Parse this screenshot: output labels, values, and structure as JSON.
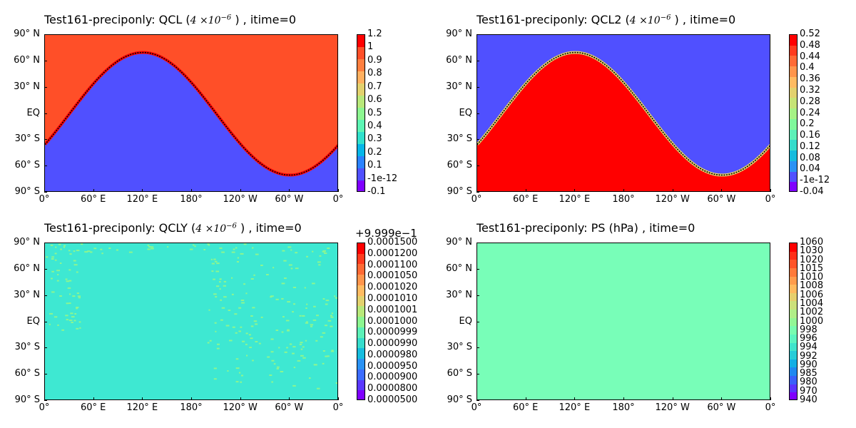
{
  "chart_data": [
    {
      "type": "heatmap",
      "title_prefix": "Test161-preciponly: QCL (",
      "title_scale_base": "4 ×10",
      "title_scale_exp": "−6",
      "title_suffix": " ) , itime=0",
      "ytick_labels": [
        "90° N",
        "60° N",
        "30° N",
        "EQ",
        "30° S",
        "60° S",
        "90° S"
      ],
      "xtick_labels": [
        "0°",
        "60° E",
        "120° E",
        "180°",
        "120° W",
        "60° W",
        "0°"
      ],
      "colorbar_labels": [
        "1.2",
        "1",
        "0.9",
        "0.8",
        "0.7",
        "0.6",
        "0.5",
        "0.4",
        "0.3",
        "0.2",
        "0.1",
        "-1e-12",
        "-0.1"
      ],
      "colorbar_colors": [
        "#ff0000",
        "#ff4f28",
        "#ff7f3f",
        "#ffb060",
        "#e2d16e",
        "#b8e87a",
        "#8cf690",
        "#5cf4b4",
        "#30e0cc",
        "#06b6e8",
        "#2a82ff",
        "#5050ff",
        "#7f00ff"
      ],
      "background_color": "#ff4f28",
      "region_color": "#5050ff",
      "edge_color": "#ff0000",
      "contour_color": "#000000",
      "region": "low-latitude band bounded by a sinusoidal front, peaking near 120° E at about 70° N and dipping near 60° W to about 70° S"
    },
    {
      "type": "heatmap",
      "title_prefix": "Test161-preciponly: QCL2 (",
      "title_scale_base": "4 ×10",
      "title_scale_exp": "−6",
      "title_suffix": " ) , itime=0",
      "ytick_labels": [
        "90° N",
        "60° N",
        "30° N",
        "EQ",
        "30° S",
        "60° S",
        "90° S"
      ],
      "xtick_labels": [
        "0°",
        "60° E",
        "120° E",
        "180°",
        "120° W",
        "60° W",
        "0°"
      ],
      "colorbar_labels": [
        "0.52",
        "0.48",
        "0.44",
        "0.4",
        "0.36",
        "0.32",
        "0.28",
        "0.24",
        "0.2",
        "0.16",
        "0.12",
        "0.08",
        "0.04",
        "-1e-12",
        "-0.04"
      ],
      "colorbar_colors": [
        "#ff0000",
        "#ff3b1e",
        "#ff6a35",
        "#ff954c",
        "#ffbb62",
        "#e2d16e",
        "#c6e476",
        "#a6f285",
        "#80f89c",
        "#5cf0b8",
        "#36dccc",
        "#16bcde",
        "#2a92f4",
        "#5050ff",
        "#7f00ff"
      ],
      "background_color": "#5050ff",
      "region_color": "#ff0000",
      "edge_color": "#e2d16e",
      "contour_color": "#000000",
      "region": "low-latitude band bounded by a sinusoidal front, peaking near 120° E at about 70° N and dipping near 60° W to about 70° S"
    },
    {
      "type": "heatmap",
      "title_prefix": "Test161-preciponly: QCLY (",
      "title_scale_base": "4 ×10",
      "title_scale_exp": "−6",
      "title_suffix": " ) , itime=0",
      "colorbar_offset": "+9.999e−1",
      "ytick_labels": [
        "90° N",
        "60° N",
        "30° N",
        "EQ",
        "30° S",
        "60° S",
        "90° S"
      ],
      "xtick_labels": [
        "0°",
        "60° E",
        "120° E",
        "180°",
        "120° W",
        "60° W",
        "0°"
      ],
      "colorbar_labels": [
        "0.0001500",
        "0.0001200",
        "0.0001100",
        "0.0001050",
        "0.0001020",
        "0.0001010",
        "0.0001001",
        "0.0001000",
        "0.0000999",
        "0.0000990",
        "0.0000980",
        "0.0000950",
        "0.0000900",
        "0.0000800",
        "0.0000500"
      ],
      "colorbar_colors": [
        "#ff0000",
        "#ff3b1e",
        "#ff6a35",
        "#ff954c",
        "#ffbb62",
        "#e2d16e",
        "#b8e87a",
        "#8cf690",
        "#5cf0b8",
        "#36dccc",
        "#16bcde",
        "#2a92f4",
        "#3c6cff",
        "#5a38ff",
        "#7f00ff"
      ],
      "background_color": "#3ee8d2",
      "speckle_color": "#8cf690",
      "field": "nearly uniform field with scattered light-green speckles, densest between 180° and 0° and along the top edge"
    },
    {
      "type": "heatmap",
      "title": "Test161-preciponly: PS (hPa) , itime=0",
      "ytick_labels": [
        "90° N",
        "60° N",
        "30° N",
        "EQ",
        "30° S",
        "60° S",
        "90° S"
      ],
      "xtick_labels": [
        "0°",
        "60° E",
        "120° E",
        "180°",
        "120° W",
        "60° W",
        "0°"
      ],
      "colorbar_labels": [
        "1060",
        "1030",
        "1020",
        "1015",
        "1010",
        "1008",
        "1006",
        "1004",
        "1002",
        "1000",
        "998",
        "996",
        "994",
        "992",
        "990",
        "985",
        "980",
        "970",
        "940"
      ],
      "colorbar_colors": [
        "#ff0000",
        "#ff2f18",
        "#ff5428",
        "#ff7a3a",
        "#ff9c4c",
        "#ffba5e",
        "#e6cf6c",
        "#cce07a",
        "#b0ee88",
        "#92f696",
        "#78fcb0",
        "#5cf4c0",
        "#40e4cc",
        "#26ccd8",
        "#12aee4",
        "#1f88f0",
        "#3a60fa",
        "#5a34ff",
        "#7f00ff"
      ],
      "background_color": "#78feb8",
      "field": "uniform field"
    }
  ]
}
